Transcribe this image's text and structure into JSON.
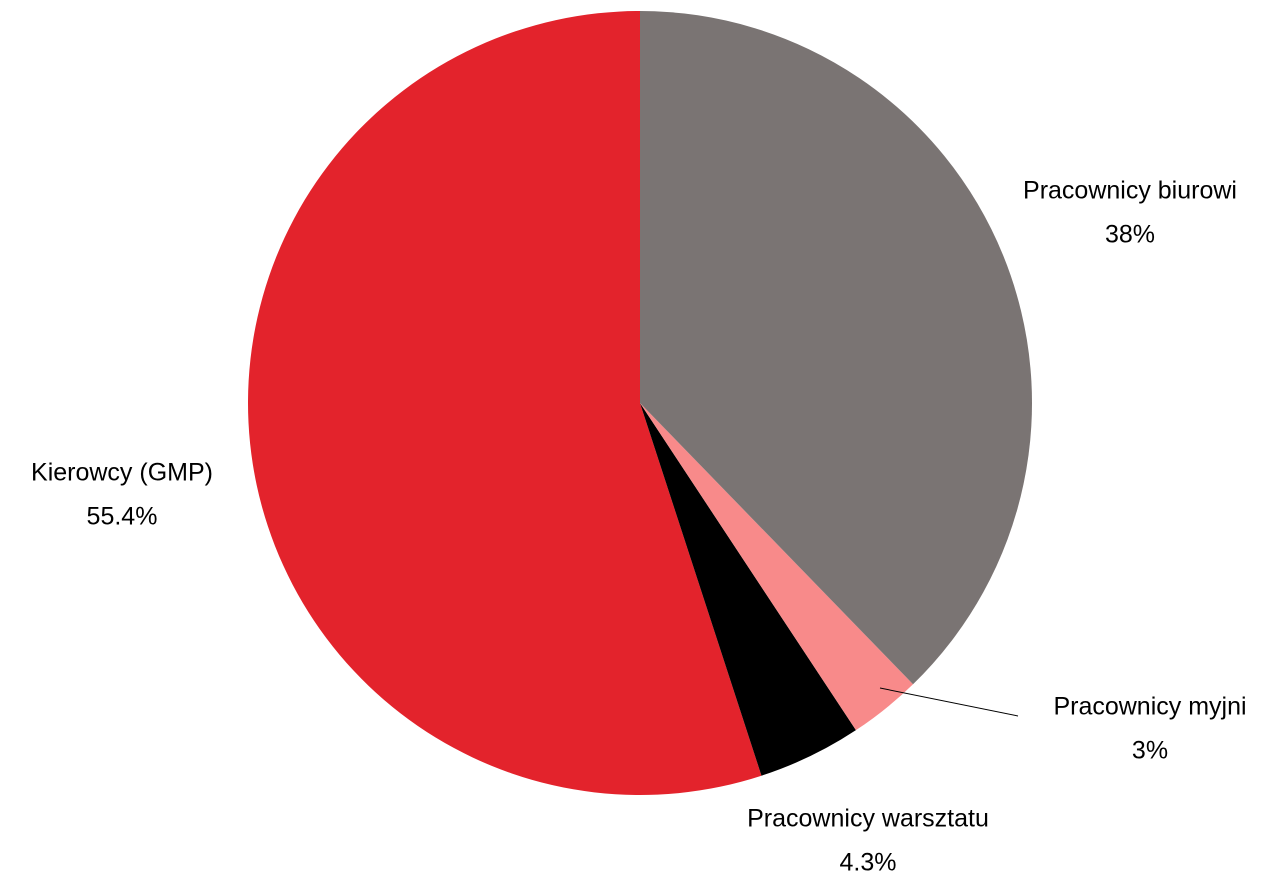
{
  "chart_data": {
    "type": "pie",
    "categories": [
      "Pracownicy biurowi",
      "Pracownicy myjni",
      "Pracownicy warsztatu",
      "Kierowcy (GMP)"
    ],
    "values": [
      38,
      3,
      4.3,
      55.4
    ],
    "value_labels": [
      "38%",
      "3%",
      "4.3%",
      "55.4%"
    ],
    "colors": [
      "#7a7473",
      "#f88a8a",
      "#000000",
      "#e3232c"
    ]
  }
}
